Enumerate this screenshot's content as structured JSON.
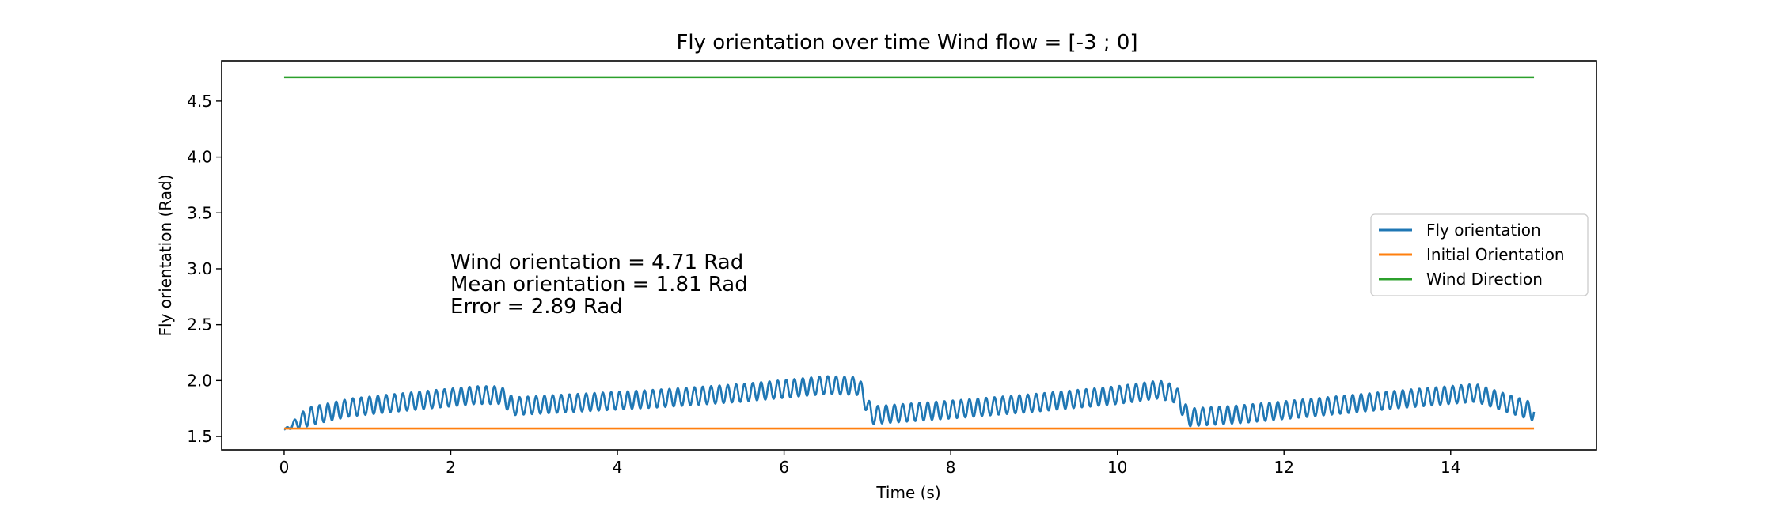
{
  "chart_data": {
    "type": "line",
    "title": "Fly orientation over time Wind flow = [-3 ; 0]",
    "xlabel": "Time (s)",
    "ylabel": "Fly orientation (Rad)",
    "xlim": [
      -0.75,
      15.75
    ],
    "ylim": [
      1.38,
      4.86
    ],
    "xticks": [
      0,
      2,
      4,
      6,
      8,
      10,
      12,
      14
    ],
    "xtick_labels": [
      "0",
      "2",
      "4",
      "6",
      "8",
      "10",
      "12",
      "14"
    ],
    "yticks": [
      1.5,
      2.0,
      2.5,
      3.0,
      3.5,
      4.0,
      4.5
    ],
    "ytick_labels": [
      "1.5",
      "2.0",
      "2.5",
      "3.0",
      "3.5",
      "4.0",
      "4.5"
    ],
    "grid": false,
    "legend_position": "center-right",
    "series": [
      {
        "name": "Fly orientation",
        "color": "#1f77b4",
        "x_range": [
          0,
          15
        ],
        "oscillation_period_s": 0.1,
        "oscillation_amplitude": 0.08,
        "segments": [
          {
            "x": [
              0.0,
              0.3,
              0.8,
              1.6,
              2.3,
              2.6
            ],
            "center": [
              1.56,
              1.68,
              1.76,
              1.82,
              1.87,
              1.87
            ]
          },
          {
            "x": [
              2.75,
              3.5,
              4.5,
              5.5,
              6.5,
              6.9
            ],
            "center": [
              1.77,
              1.8,
              1.84,
              1.89,
              1.96,
              1.95
            ]
          },
          {
            "x": [
              7.05,
              8.0,
              9.0,
              10.0,
              10.5,
              10.7
            ],
            "center": [
              1.69,
              1.74,
              1.8,
              1.87,
              1.92,
              1.88
            ]
          },
          {
            "x": [
              10.85,
              11.5,
              12.5,
              13.5,
              14.3,
              14.75,
              15.0
            ],
            "center": [
              1.67,
              1.7,
              1.77,
              1.84,
              1.89,
              1.78,
              1.72
            ]
          }
        ]
      },
      {
        "name": "Initial Orientation",
        "color": "#ff7f0e",
        "x": [
          0,
          15
        ],
        "values": [
          1.5708,
          1.5708
        ]
      },
      {
        "name": "Wind Direction",
        "color": "#2ca02c",
        "x": [
          0,
          15
        ],
        "values": [
          4.7124,
          4.7124
        ]
      }
    ],
    "annotations": [
      "Wind orientation = 4.71 Rad",
      "Mean orientation = 1.81 Rad",
      "Error = 2.89 Rad"
    ]
  }
}
